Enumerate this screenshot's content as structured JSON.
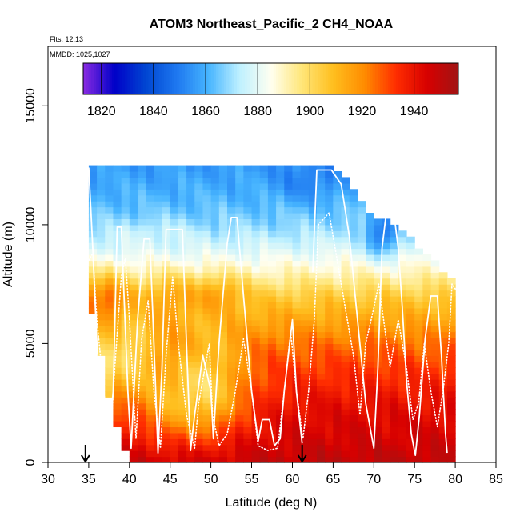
{
  "chart_data": {
    "type": "heatmap",
    "title": "ATOM3 Northeast_Pacific_2 CH4_NOAA",
    "flights_text": "Flts: 12,13",
    "dates_text": "MMDD: 1025,1027",
    "xlabel": "Latitude (deg N)",
    "ylabel": "Altitude (m)",
    "xlim": [
      30,
      85
    ],
    "ylim": [
      0,
      17500
    ],
    "x_ticks": [
      30,
      35,
      40,
      45,
      50,
      55,
      60,
      65,
      70,
      75,
      80,
      85
    ],
    "y_ticks": [
      0,
      5000,
      10000,
      15000
    ],
    "colorbar": {
      "min": 1813,
      "max": 1957,
      "tick_values": [
        1820,
        1840,
        1860,
        1880,
        1900,
        1920,
        1940
      ],
      "tick_labels": [
        "1820",
        "1840",
        "1860",
        "1880",
        "1900",
        "1920",
        "1940"
      ],
      "colors": [
        "#8a2be2",
        "#0000c8",
        "#0046d2",
        "#1e78f0",
        "#46b4ff",
        "#bef0ff",
        "#fffff0",
        "#ffe678",
        "#ffbe1e",
        "#ff8c00",
        "#ff2d00",
        "#d70000",
        "#a01414"
      ]
    },
    "arrows_latitude": [
      34.6,
      61.2
    ],
    "grid": {
      "lat_range": [
        35,
        80
      ],
      "lat_step": 1,
      "alt_step": 250,
      "upper_boundary": [
        [
          35,
          12500
        ],
        [
          63,
          12500
        ],
        [
          66,
          12300
        ],
        [
          67,
          11800
        ],
        [
          68,
          11300
        ],
        [
          69,
          10700
        ],
        [
          70,
          10300
        ],
        [
          72,
          10300
        ],
        [
          73,
          9800
        ],
        [
          75,
          9300
        ],
        [
          76,
          8800
        ],
        [
          78,
          8300
        ],
        [
          79,
          7800
        ],
        [
          80,
          7500
        ]
      ],
      "lower_boundary": [
        [
          35,
          7000
        ],
        [
          36,
          5500
        ],
        [
          37,
          3500
        ],
        [
          38,
          2000
        ],
        [
          39,
          1000
        ],
        [
          40,
          0
        ],
        [
          80,
          0
        ]
      ],
      "profile": [
        [
          0,
          1950
        ],
        [
          1000,
          1946
        ],
        [
          2000,
          1943
        ],
        [
          3000,
          1938
        ],
        [
          4000,
          1932
        ],
        [
          5000,
          1925
        ],
        [
          6000,
          1915
        ],
        [
          7000,
          1905
        ],
        [
          8000,
          1890
        ],
        [
          9000,
          1878
        ],
        [
          10000,
          1868
        ],
        [
          11000,
          1862
        ],
        [
          12000,
          1858
        ],
        [
          12500,
          1856
        ]
      ],
      "features": [
        {
          "lat": 37,
          "alt": 7000,
          "dlat": 3,
          "dalt": 1000,
          "amp": 22
        },
        {
          "lat": 45,
          "alt": 7200,
          "dlat": 3,
          "dalt": 900,
          "amp": 12
        },
        {
          "lat": 51,
          "alt": 7200,
          "dlat": 3,
          "dalt": 800,
          "amp": 14
        },
        {
          "lat": 47,
          "alt": 2500,
          "dlat": 7,
          "dalt": 1800,
          "amp": -30
        },
        {
          "lat": 50,
          "alt": 4000,
          "dlat": 4,
          "dalt": 2000,
          "amp": -15
        },
        {
          "lat": 40,
          "alt": 4500,
          "dlat": 3,
          "dalt": 1500,
          "amp": -25
        },
        {
          "lat": 62,
          "alt": 11800,
          "dlat": 4,
          "dalt": 900,
          "amp": -8
        },
        {
          "lat": 71,
          "alt": 9500,
          "dlat": 2,
          "dalt": 900,
          "amp": -25
        },
        {
          "lat": 43,
          "alt": 9800,
          "dlat": 5,
          "dalt": 500,
          "amp": 5
        },
        {
          "lat": 36,
          "alt": 3000,
          "dlat": 2,
          "dalt": 2000,
          "amp": -40
        }
      ]
    },
    "flight_tracks": [
      {
        "style": "solid",
        "points": [
          [
            35,
            12400
          ],
          [
            35.5,
            9000
          ],
          [
            36,
            5000
          ],
          [
            36.8,
            1000
          ],
          [
            37.3,
            300
          ],
          [
            38,
            3000
          ],
          [
            38.5,
            9900
          ],
          [
            39,
            9900
          ],
          [
            39.8,
            3000
          ],
          [
            40.2,
            600
          ],
          [
            41,
            6000
          ],
          [
            41.8,
            9400
          ],
          [
            42.5,
            9400
          ],
          [
            43,
            5000
          ],
          [
            43.5,
            400
          ],
          [
            44,
            4000
          ],
          [
            44.5,
            9800
          ],
          [
            46.5,
            9800
          ],
          [
            47,
            5000
          ],
          [
            47.5,
            500
          ],
          [
            48,
            2000
          ],
          [
            49,
            4500
          ],
          [
            50,
            3000
          ],
          [
            50.3,
            1000
          ],
          [
            51,
            5000
          ],
          [
            52,
            9200
          ],
          [
            52.5,
            10300
          ],
          [
            53.2,
            10300
          ],
          [
            54,
            7000
          ],
          [
            55,
            3000
          ],
          [
            55.8,
            900
          ],
          [
            56.3,
            1800
          ],
          [
            57.2,
            1800
          ],
          [
            57.8,
            700
          ],
          [
            58.5,
            1000
          ],
          [
            59,
            3000
          ],
          [
            60,
            6000
          ],
          [
            60.5,
            3000
          ],
          [
            61.2,
            800
          ]
        ]
      },
      {
        "style": "solid",
        "points": [
          [
            62.5,
            8000
          ],
          [
            63,
            12300
          ],
          [
            64.8,
            12300
          ],
          [
            66,
            11700
          ],
          [
            67,
            9500
          ],
          [
            68,
            6000
          ],
          [
            69,
            2500
          ],
          [
            70,
            600
          ],
          [
            70.5,
            4000
          ],
          [
            71,
            9000
          ],
          [
            71.5,
            10400
          ],
          [
            72.5,
            10400
          ],
          [
            73,
            9000
          ],
          [
            73.5,
            6500
          ],
          [
            74,
            3500
          ],
          [
            74.6,
            1200
          ],
          [
            75.1,
            300
          ],
          [
            75.6,
            2000
          ],
          [
            76.3,
            5200
          ],
          [
            77,
            7000
          ],
          [
            77.8,
            7000
          ],
          [
            78.3,
            4500
          ],
          [
            78.8,
            1200
          ],
          [
            79,
            400
          ]
        ]
      },
      {
        "style": "dotted",
        "points": [
          [
            35,
            8500
          ],
          [
            35.5,
            8800
          ],
          [
            36,
            6000
          ],
          [
            37,
            2500
          ],
          [
            37.6,
            600
          ],
          [
            38.2,
            4000
          ],
          [
            39,
            7800
          ],
          [
            39.5,
            8600
          ],
          [
            40,
            6000
          ],
          [
            40.8,
            1000
          ],
          [
            41.5,
            5200
          ],
          [
            42.3,
            6800
          ],
          [
            43,
            3000
          ],
          [
            43.8,
            600
          ],
          [
            44.5,
            4500
          ],
          [
            45.3,
            7800
          ],
          [
            46,
            5000
          ],
          [
            47,
            2000
          ],
          [
            48,
            600
          ],
          [
            48.5,
            2500
          ],
          [
            49.8,
            5000
          ],
          [
            50.2,
            2000
          ],
          [
            51,
            700
          ],
          [
            52,
            1200
          ],
          [
            53,
            3000
          ],
          [
            54,
            5200
          ],
          [
            55,
            3000
          ],
          [
            55.8,
            700
          ],
          [
            57,
            500
          ],
          [
            58.2,
            600
          ],
          [
            59,
            3000
          ],
          [
            59.8,
            5500
          ],
          [
            60.5,
            3000
          ],
          [
            61.3,
            1000
          ],
          [
            62,
            3000
          ],
          [
            62.7,
            6000
          ],
          [
            63.2,
            10000
          ],
          [
            64.5,
            10500
          ],
          [
            65.5,
            8500
          ],
          [
            66.5,
            6500
          ],
          [
            67.5,
            4500
          ],
          [
            68.3,
            2000
          ],
          [
            69,
            5000
          ],
          [
            70,
            6500
          ],
          [
            70.6,
            7500
          ],
          [
            71.2,
            6000
          ],
          [
            72,
            4000
          ],
          [
            73,
            6000
          ],
          [
            74,
            4000
          ],
          [
            74.8,
            1800
          ],
          [
            75.5,
            2500
          ],
          [
            76.2,
            5000
          ],
          [
            77,
            3000
          ],
          [
            77.8,
            1500
          ],
          [
            78.5,
            3000
          ],
          [
            79.2,
            5000
          ],
          [
            79.6,
            7500
          ],
          [
            80,
            7300
          ]
        ]
      }
    ]
  }
}
